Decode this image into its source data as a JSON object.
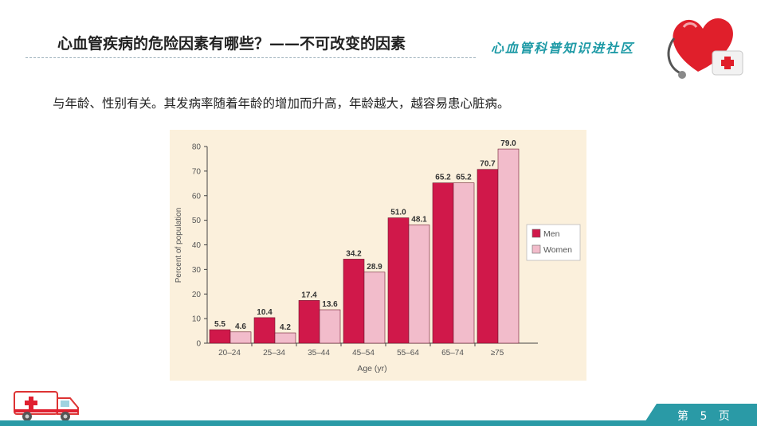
{
  "slide": {
    "title": "心血管疾病的危险因素有哪些？——不可改变的因素",
    "brand": "心血管科普知识进社区",
    "subtitle": "与年龄、性别有关。其发病率随着年龄的增加而升高，年龄越大，越容易患心脏病。",
    "page_number": "第 5 页"
  },
  "colors": {
    "men": "#d0184a",
    "women": "#f2bccb",
    "accent": "#2a9aa6"
  },
  "chart_data": {
    "type": "bar",
    "categories": [
      "20–24",
      "25–34",
      "35–44",
      "45–54",
      "55–64",
      "65–74",
      "≥75"
    ],
    "series": [
      {
        "name": "Men",
        "values": [
          5.5,
          10.4,
          17.4,
          34.2,
          51.0,
          65.2,
          70.7
        ]
      },
      {
        "name": "Women",
        "values": [
          4.6,
          4.2,
          13.6,
          28.9,
          48.1,
          65.2,
          79.0
        ]
      }
    ],
    "xlabel": "Age (yr)",
    "ylabel": "Percent of population",
    "ylim": [
      0,
      80
    ],
    "yticks": [
      0,
      10,
      20,
      30,
      40,
      50,
      60,
      70,
      80
    ],
    "grid": false,
    "legend_position": "right"
  }
}
